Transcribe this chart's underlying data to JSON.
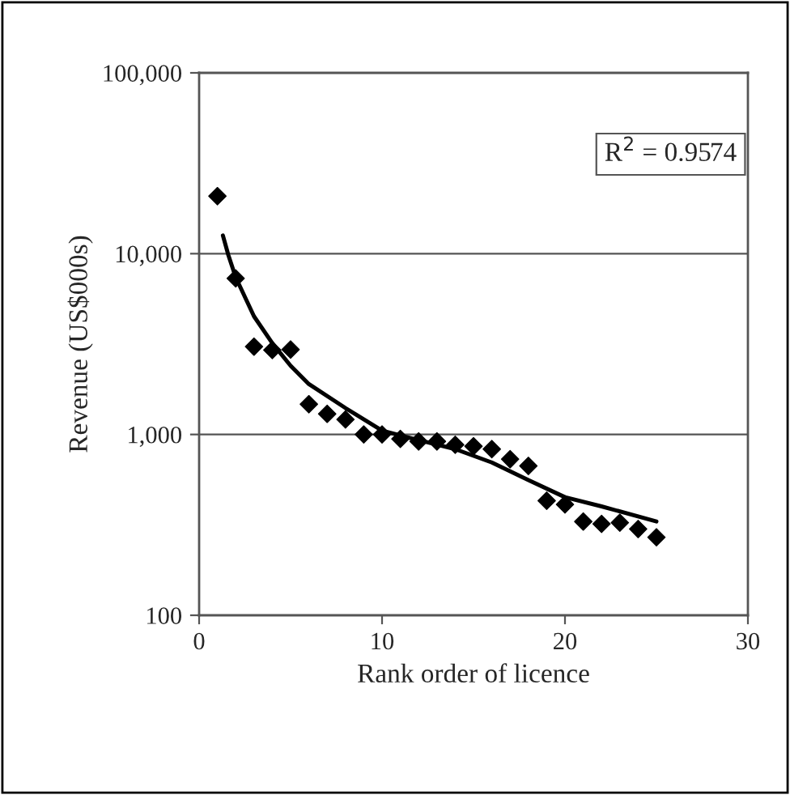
{
  "chart_data": {
    "type": "scatter",
    "xlabel": "Rank order of licence",
    "ylabel": "Revenue (US$000s)",
    "log": "y",
    "xlim": [
      0,
      30
    ],
    "xticks": [
      0,
      10,
      20,
      30
    ],
    "ylim": [
      100,
      100000
    ],
    "yticks": [
      {
        "value": 100,
        "label": "100"
      },
      {
        "value": 1000,
        "label": "1,000"
      },
      {
        "value": 10000,
        "label": "10,000"
      },
      {
        "value": 100000,
        "label": "100,000"
      }
    ],
    "grid": "y",
    "legend": false,
    "marker": "diamond",
    "annotations": [
      "R$^{2}$ = 0.9574"
    ],
    "series": [
      {
        "color": "#000000",
        "x": [
          1,
          2,
          3,
          4,
          5,
          6,
          7,
          8,
          9,
          10,
          11,
          12,
          13,
          14,
          15,
          16,
          17,
          18,
          19,
          20,
          21,
          22,
          23,
          24,
          25
        ],
        "values": [
          20800,
          7300,
          3060,
          2930,
          2950,
          1470,
          1300,
          1210,
          1000,
          1000,
          945,
          915,
          915,
          877,
          860,
          830,
          730,
          670,
          430,
          410,
          330,
          320,
          325,
          300,
          270
        ]
      },
      {
        "type": "line",
        "color": "#000000",
        "marker": "none",
        "x": [
          1.3,
          1.6,
          2,
          3,
          4,
          5,
          6,
          8,
          10,
          12,
          14,
          16,
          18,
          20,
          22,
          25
        ],
        "values": [
          12600,
          9800,
          7400,
          4500,
          3200,
          2400,
          1900,
          1400,
          1050,
          930,
          830,
          700,
          560,
          450,
          400,
          330
        ]
      }
    ]
  }
}
